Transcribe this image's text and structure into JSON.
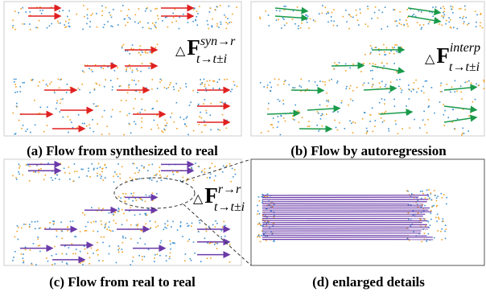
{
  "panels": [
    {
      "caption": "(a) Flow from synthesized to real",
      "label": {
        "symbol": "△",
        "main": "F",
        "sup": "syn→r",
        "sub": "t→t±i"
      }
    },
    {
      "caption": "(b) Flow by autoregression",
      "label": {
        "symbol": "△",
        "main": "F",
        "sup": "interp",
        "sub": "t→t±i"
      }
    },
    {
      "caption": "(c) Flow from real to real",
      "label": {
        "symbol": "△",
        "main": "F",
        "sup": "r→r",
        "sub": "t→t±i"
      }
    },
    {
      "caption": "(d) enlarged details"
    }
  ]
}
